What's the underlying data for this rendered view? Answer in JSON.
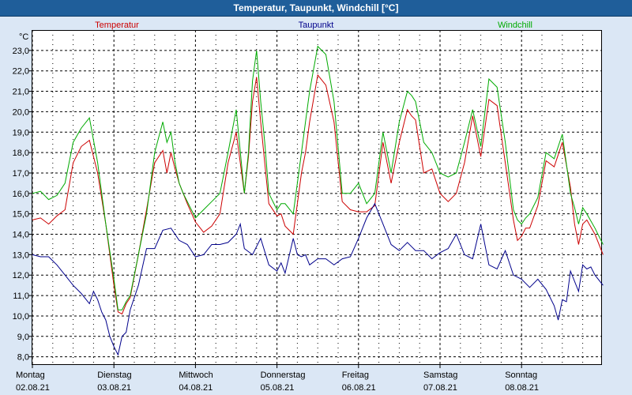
{
  "window_title": "Temperatur, Taupunkt, Windchill [°C]",
  "chart_data": {
    "type": "line",
    "title": "Temperatur, Taupunkt, Windchill [°C]",
    "ylabel": "°C",
    "ylim": [
      7.6,
      24.0
    ],
    "xlim": [
      0,
      7
    ],
    "y_ticks": [
      "8,0",
      "9,0",
      "10,0",
      "11,0",
      "12,0",
      "13,0",
      "14,0",
      "15,0",
      "16,0",
      "17,0",
      "18,0",
      "19,0",
      "20,0",
      "21,0",
      "22,0",
      "23,0"
    ],
    "x_ticks": [
      {
        "day": "Montag",
        "date": "02.08.21"
      },
      {
        "day": "Dienstag",
        "date": "03.08.21"
      },
      {
        "day": "Mittwoch",
        "date": "04.08.21"
      },
      {
        "day": "Donnerstag",
        "date": "05.08.21"
      },
      {
        "day": "Freitag",
        "date": "06.08.21"
      },
      {
        "day": "Samstag",
        "date": "07.08.21"
      },
      {
        "day": "Sonntag",
        "date": "08.08.21"
      }
    ],
    "grid": true,
    "series": [
      {
        "name": "Temperatur",
        "color": "#cc0000",
        "x": [
          0,
          0.1,
          0.2,
          0.3,
          0.4,
          0.5,
          0.6,
          0.7,
          0.8,
          0.9,
          1.0,
          1.05,
          1.1,
          1.15,
          1.2,
          1.3,
          1.4,
          1.5,
          1.6,
          1.65,
          1.7,
          1.75,
          1.8,
          1.85,
          1.9,
          2.0,
          2.1,
          2.2,
          2.3,
          2.4,
          2.5,
          2.6,
          2.65,
          2.7,
          2.75,
          2.8,
          2.85,
          2.9,
          3.0,
          3.05,
          3.1,
          3.2,
          3.3,
          3.35,
          3.4,
          3.5,
          3.6,
          3.7,
          3.8,
          3.9,
          4.0,
          4.1,
          4.2,
          4.3,
          4.4,
          4.5,
          4.6,
          4.65,
          4.7,
          4.8,
          4.9,
          5.0,
          5.1,
          5.2,
          5.3,
          5.4,
          5.5,
          5.6,
          5.7,
          5.8,
          5.9,
          5.95,
          6.0,
          6.05,
          6.1,
          6.2,
          6.3,
          6.4,
          6.5,
          6.6,
          6.65,
          6.7,
          6.75,
          6.8,
          6.9,
          7.0
        ],
        "values": [
          14.7,
          14.8,
          14.5,
          14.9,
          15.2,
          17.5,
          18.3,
          18.6,
          17.0,
          14.5,
          11.5,
          10.2,
          10.1,
          10.6,
          10.9,
          13.0,
          15.2,
          17.5,
          18.1,
          17.0,
          18.0,
          17.2,
          16.5,
          16.0,
          15.5,
          14.6,
          14.1,
          14.4,
          15.0,
          17.5,
          19.0,
          16.0,
          17.8,
          20.5,
          21.7,
          19.5,
          17.5,
          15.5,
          14.9,
          15.0,
          14.4,
          14.0,
          17.0,
          18.0,
          19.5,
          21.8,
          21.3,
          19.5,
          15.6,
          15.2,
          15.1,
          15.1,
          15.4,
          18.5,
          16.5,
          18.5,
          20.1,
          19.8,
          19.6,
          17.0,
          17.2,
          16.0,
          15.6,
          16.0,
          17.5,
          19.8,
          17.8,
          20.6,
          20.3,
          17.5,
          14.7,
          13.7,
          13.9,
          14.3,
          14.3,
          15.4,
          17.6,
          17.3,
          18.5,
          16.3,
          14.5,
          13.5,
          14.5,
          14.7,
          14.0,
          13.0
        ]
      },
      {
        "name": "Taupunkt",
        "color": "#00008b",
        "x": [
          0,
          0.1,
          0.2,
          0.3,
          0.4,
          0.5,
          0.6,
          0.7,
          0.75,
          0.8,
          0.85,
          0.9,
          0.95,
          1.0,
          1.05,
          1.1,
          1.15,
          1.2,
          1.3,
          1.4,
          1.5,
          1.6,
          1.7,
          1.8,
          1.9,
          2.0,
          2.1,
          2.2,
          2.3,
          2.4,
          2.5,
          2.55,
          2.6,
          2.7,
          2.8,
          2.9,
          3.0,
          3.05,
          3.1,
          3.2,
          3.25,
          3.3,
          3.35,
          3.4,
          3.5,
          3.6,
          3.7,
          3.8,
          3.9,
          4.0,
          4.1,
          4.2,
          4.3,
          4.4,
          4.5,
          4.6,
          4.7,
          4.8,
          4.9,
          5.0,
          5.1,
          5.2,
          5.3,
          5.4,
          5.5,
          5.6,
          5.7,
          5.8,
          5.9,
          6.0,
          6.1,
          6.2,
          6.3,
          6.4,
          6.45,
          6.5,
          6.55,
          6.6,
          6.7,
          6.75,
          6.8,
          6.85,
          6.9,
          7.0
        ],
        "values": [
          13.0,
          12.9,
          12.9,
          12.5,
          12.0,
          11.5,
          11.1,
          10.6,
          11.2,
          10.8,
          10.2,
          9.8,
          9.0,
          8.5,
          8.1,
          9.0,
          9.2,
          10.3,
          11.5,
          13.3,
          13.3,
          14.2,
          14.3,
          13.7,
          13.5,
          12.9,
          13.0,
          13.5,
          13.5,
          13.6,
          14.0,
          14.5,
          13.3,
          13.0,
          13.8,
          12.5,
          12.2,
          12.6,
          12.1,
          13.8,
          13.0,
          12.9,
          13.0,
          12.5,
          12.8,
          12.8,
          12.5,
          12.8,
          12.9,
          13.8,
          14.8,
          15.5,
          14.5,
          13.5,
          13.2,
          13.6,
          13.2,
          13.2,
          12.8,
          13.1,
          13.3,
          14.0,
          13.0,
          12.8,
          14.5,
          12.5,
          12.3,
          13.2,
          12.0,
          11.8,
          11.4,
          11.8,
          11.3,
          10.5,
          9.8,
          10.8,
          10.7,
          12.2,
          11.2,
          12.5,
          12.3,
          12.4,
          12.0,
          11.5
        ]
      },
      {
        "name": "Windchill",
        "color": "#00aa00",
        "x": [
          0,
          0.1,
          0.2,
          0.3,
          0.4,
          0.5,
          0.6,
          0.7,
          0.8,
          0.9,
          1.0,
          1.05,
          1.1,
          1.15,
          1.2,
          1.3,
          1.4,
          1.5,
          1.6,
          1.65,
          1.7,
          1.75,
          1.8,
          1.85,
          1.9,
          2.0,
          2.1,
          2.2,
          2.3,
          2.4,
          2.5,
          2.6,
          2.65,
          2.7,
          2.75,
          2.8,
          2.85,
          2.9,
          3.0,
          3.05,
          3.1,
          3.2,
          3.3,
          3.35,
          3.4,
          3.5,
          3.6,
          3.7,
          3.8,
          3.9,
          4.0,
          4.1,
          4.2,
          4.3,
          4.4,
          4.5,
          4.6,
          4.65,
          4.7,
          4.8,
          4.9,
          5.0,
          5.1,
          5.2,
          5.3,
          5.4,
          5.5,
          5.6,
          5.7,
          5.8,
          5.9,
          5.95,
          6.0,
          6.05,
          6.1,
          6.2,
          6.3,
          6.4,
          6.5,
          6.6,
          6.65,
          6.7,
          6.75,
          6.8,
          6.9,
          7.0
        ],
        "values": [
          16.0,
          16.1,
          15.7,
          15.9,
          16.5,
          18.5,
          19.2,
          19.7,
          17.5,
          14.5,
          11.8,
          10.3,
          10.3,
          10.7,
          11.0,
          13.0,
          15.0,
          18.0,
          19.5,
          18.5,
          19.0,
          17.5,
          16.5,
          16.0,
          15.6,
          14.8,
          15.2,
          15.6,
          16.0,
          18.0,
          20.1,
          16.0,
          18.0,
          21.5,
          23.0,
          20.5,
          18.5,
          16.0,
          15.2,
          15.5,
          15.5,
          15.0,
          18.0,
          19.5,
          21.0,
          23.2,
          22.8,
          20.5,
          16.0,
          16.0,
          16.5,
          15.5,
          16.0,
          19.0,
          17.0,
          19.5,
          21.0,
          20.8,
          20.5,
          18.5,
          18.0,
          17.0,
          16.8,
          17.0,
          18.5,
          20.1,
          18.3,
          21.6,
          21.2,
          18.5,
          15.2,
          14.7,
          14.5,
          14.8,
          15.0,
          15.8,
          18.0,
          17.7,
          18.9,
          16.0,
          15.3,
          14.5,
          15.3,
          15.0,
          14.3,
          13.5
        ]
      }
    ]
  }
}
